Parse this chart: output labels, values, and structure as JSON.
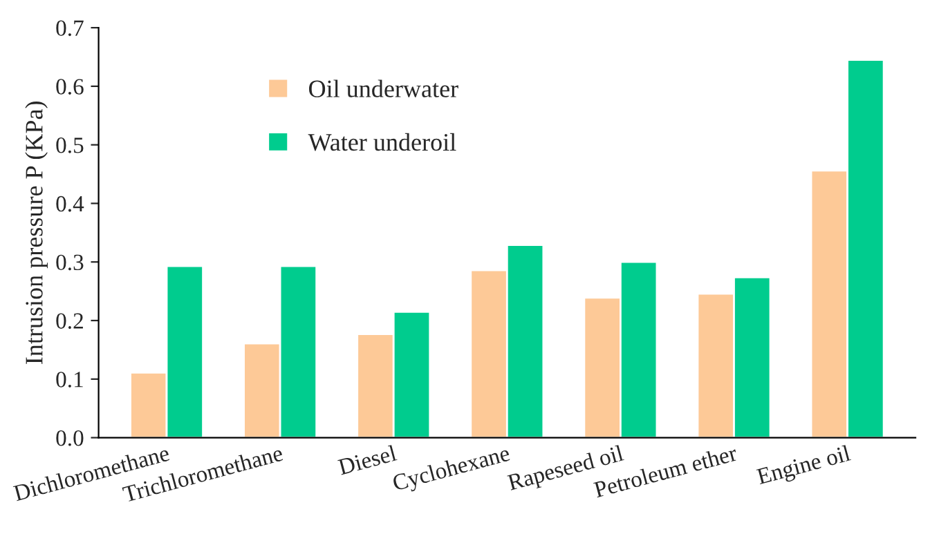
{
  "chart_data": {
    "type": "bar",
    "ylabel": "Intrusion pressure P (KPa)",
    "categories": [
      "Dichloromethane",
      "Trichloromethane",
      "Diesel",
      "Cyclohexane",
      "Rapeseed oil",
      "Petroleum ether",
      "Engine oil"
    ],
    "series": [
      {
        "name": "Oil underwater",
        "color": "#fdc997",
        "values": [
          0.111,
          0.161,
          0.177,
          0.286,
          0.239,
          0.246,
          0.456
        ]
      },
      {
        "name": "Water underoil",
        "color": "#00cc8e",
        "values": [
          0.293,
          0.293,
          0.215,
          0.329,
          0.3,
          0.274,
          0.645
        ]
      }
    ],
    "ylim": [
      0.0,
      0.7
    ],
    "yticks": [
      {
        "value": 0,
        "label": "0.0"
      },
      0.1,
      0.2,
      0.3,
      0.4,
      0.5,
      0.6,
      0.7
    ],
    "grid": false,
    "legend": "top left"
  }
}
